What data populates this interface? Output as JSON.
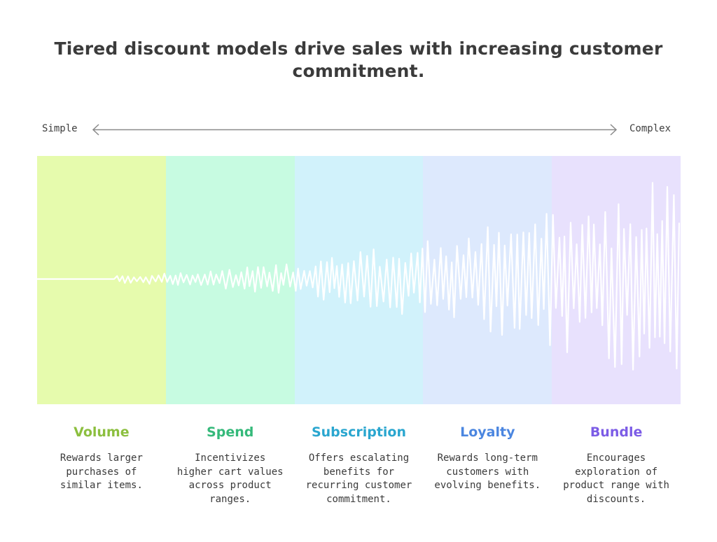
{
  "title": "Tiered discount models drive sales with increasing customer commitment.",
  "axis": {
    "left_label": "Simple",
    "right_label": "Complex"
  },
  "tiers": [
    {
      "name": "Volume",
      "description": "Rewards larger purchases of similar items.",
      "color": "#8cbf3f",
      "band_color": "#e6fbad"
    },
    {
      "name": "Spend",
      "description": "Incentivizes higher cart values across product ranges.",
      "color": "#35b97a",
      "band_color": "#c7fbe1"
    },
    {
      "name": "Subscription",
      "description": "Offers escalating benefits for recurring customer commitment.",
      "color": "#2aa6cf",
      "band_color": "#d1f2fb"
    },
    {
      "name": "Loyalty",
      "description": "Rewards long-term customers with evolving benefits.",
      "color": "#4b86e0",
      "band_color": "#dde9fd"
    },
    {
      "name": "Bundle",
      "description": "Encourages exploration of product range with discounts.",
      "color": "#7c5ce6",
      "band_color": "#e8e1fd"
    }
  ]
}
